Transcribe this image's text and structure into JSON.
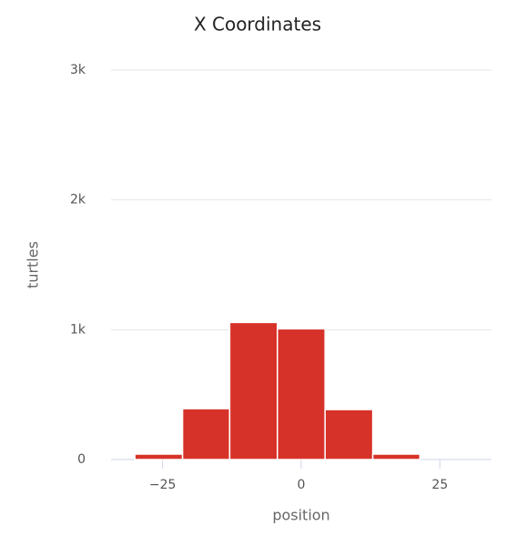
{
  "chart_data": {
    "type": "histogram",
    "title": "X Coordinates",
    "x_label": "position",
    "y_label": "turtles",
    "bins": [
      -30,
      -21.4,
      -12.9,
      -4.3,
      4.3,
      12.9,
      21.4
    ],
    "values": [
      42,
      392,
      1056,
      1007,
      385,
      42
    ],
    "color": "#d73229",
    "xlim": [
      -34.3,
      34.3
    ],
    "xticks": [
      {
        "value": -25,
        "label": "−25"
      },
      0,
      25
    ],
    "ylim": [
      0,
      3000
    ],
    "yticks": [
      0,
      {
        "value": 1000,
        "label": "1k"
      },
      {
        "value": 2000,
        "label": "2k"
      },
      {
        "value": 3000,
        "label": "3k"
      }
    ],
    "grid": true
  }
}
